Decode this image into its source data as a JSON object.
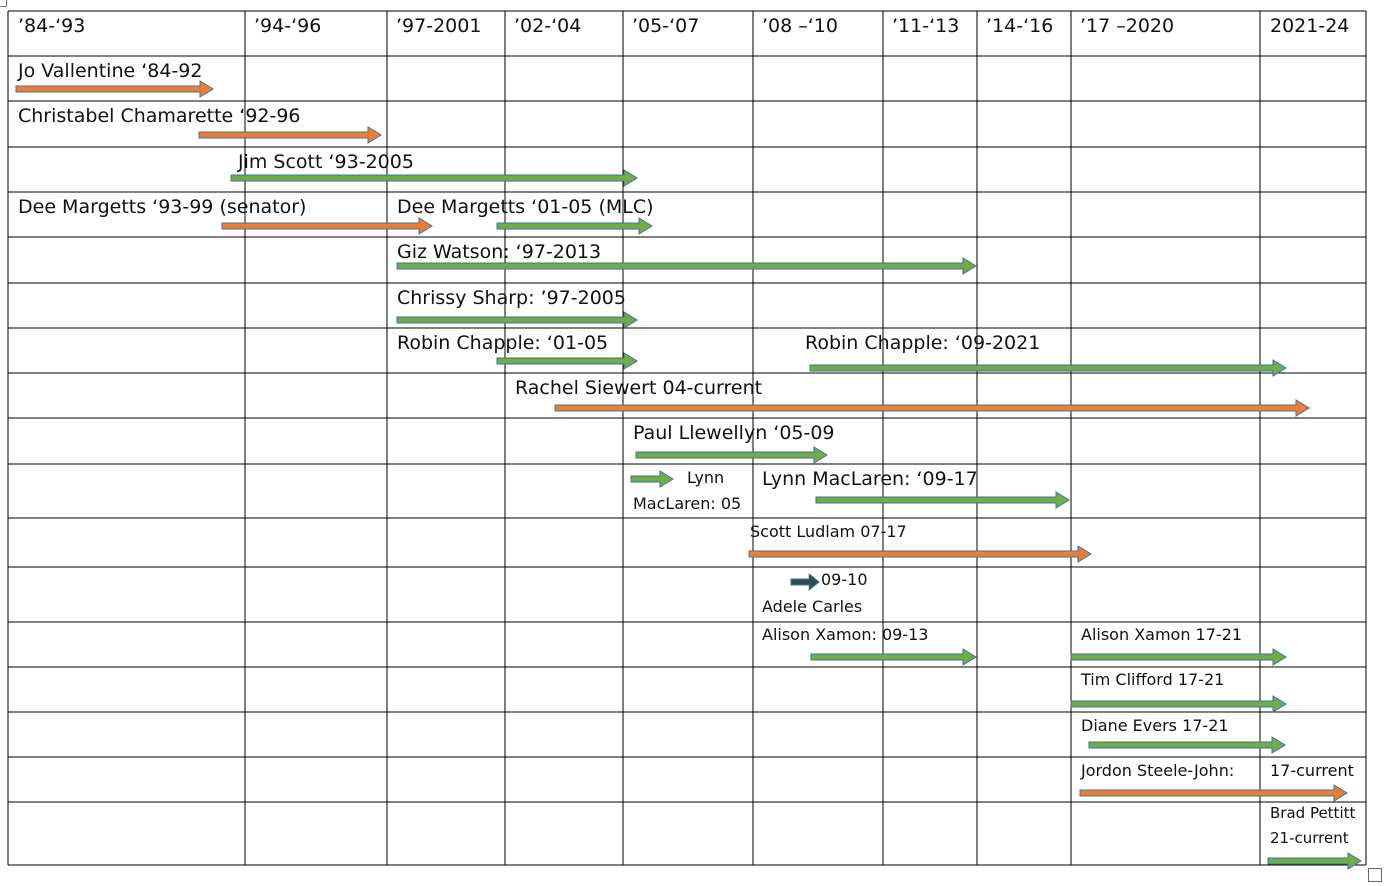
{
  "table": {
    "headers": [
      "’84-‘93",
      "’94-‘96",
      "’97-2001",
      "’02-‘04",
      "’05-‘07",
      "’08 –‘10",
      "’11-‘13",
      "’14-‘16",
      "’17 –2020",
      "2021-24"
    ],
    "labels": [
      "Jo Vallentine ‘84-92",
      "Christabel Chamarette ‘92-96",
      "Jim Scott ‘93-2005",
      "Dee Margetts ‘93-99 (senator)",
      "Dee Margetts ‘01-05 (MLC)",
      "Giz Watson: ‘97-2013",
      "Chrissy Sharp: ’97-2005",
      "Robin Chapple: ‘01-05",
      "Robin Chapple: ‘09-2021",
      "Rachel Siewert 04-current",
      "Paul Llewellyn ‘05-09",
      "Lynn",
      "MacLaren: 05",
      "Lynn MacLaren: ‘09-17",
      "Scott Ludlam 07-17",
      "09-10",
      "Adele Carles",
      "Alison Xamon: 09-13",
      "Alison Xamon 17-21",
      "Tim Clifford 17-21",
      "Diane Evers 17-21",
      "Jordon Steele-John:",
      "17-current",
      "Brad Pettitt",
      "21-current"
    ]
  },
  "colors": {
    "orange_fill": "#ED7D31",
    "green_fill": "#70AD47",
    "dark_fill": "#2F4F4F",
    "arrow_outline": "#41719C",
    "grid": "#000000"
  }
}
